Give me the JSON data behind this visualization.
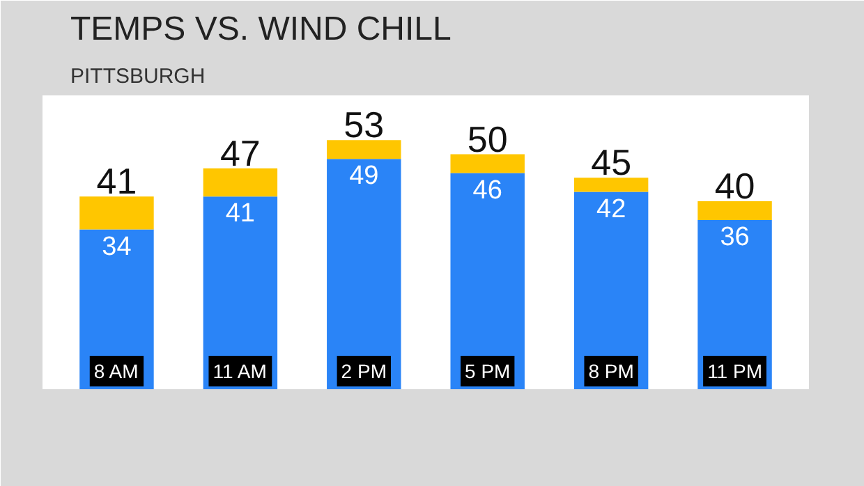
{
  "chart_data": {
    "type": "bar",
    "title": "TEMPS VS. WIND CHILL",
    "subtitle": "PITTSBURGH",
    "categories": [
      "8 AM",
      "11 AM",
      "2 PM",
      "5 PM",
      "8 PM",
      "11 PM"
    ],
    "stacked": true,
    "series": [
      {
        "color": "#2a84f7",
        "values": [
          34,
          41,
          49,
          46,
          42,
          36
        ],
        "value_labels": [
          "34",
          "41",
          "49",
          "46",
          "42",
          "36"
        ]
      },
      {
        "color": "#ffc600",
        "values": [
          7,
          6,
          4,
          4,
          3,
          4
        ]
      }
    ],
    "totals": [
      "41",
      "47",
      "53",
      "50",
      "45",
      "40"
    ],
    "tick_labels": false
  }
}
